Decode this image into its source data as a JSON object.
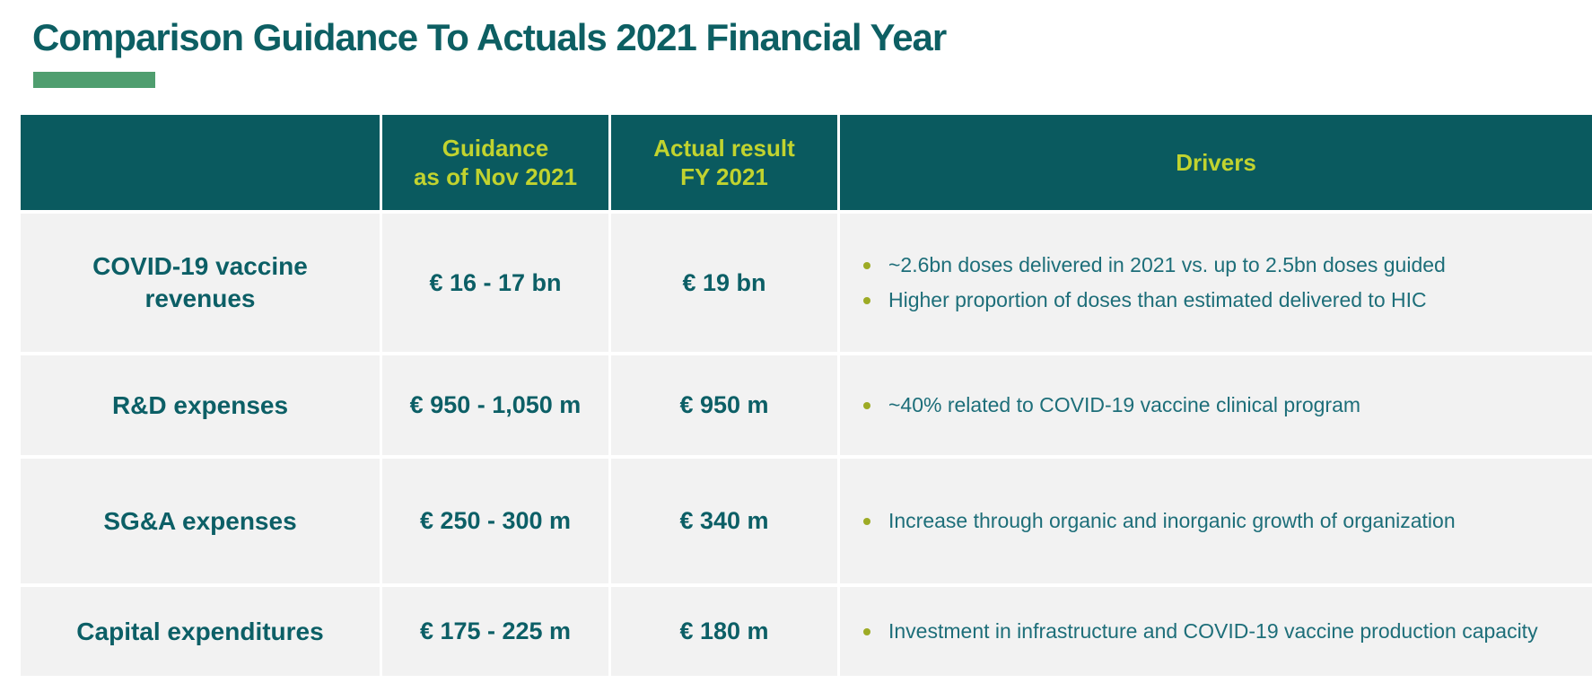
{
  "slide": {
    "title": "Comparison Guidance To Actuals 2021 Financial Year"
  },
  "colors": {
    "title_text": "#0d5f63",
    "accent_bar": "#4f9e6f",
    "header_bg": "#0a5a5f",
    "header_text": "#c1d32f",
    "row_bg": "#f2f2f2",
    "cell_text": "#0c5f66",
    "driver_text": "#1d6e79",
    "bullet": "#9dab25",
    "page_bg": "#ffffff"
  },
  "table": {
    "header": {
      "metric": "",
      "guidance_line1": "Guidance",
      "guidance_line2": "as of Nov 2021",
      "actual_line1": "Actual result",
      "actual_line2": "FY 2021",
      "drivers": "Drivers"
    },
    "rows": [
      {
        "label": "COVID-19 vaccine revenues",
        "guidance": "€ 16 - 17 bn",
        "actual": "€ 19 bn",
        "drivers": [
          "~2.6bn doses delivered in 2021 vs. up to 2.5bn doses guided",
          "Higher proportion of doses than estimated delivered to HIC"
        ]
      },
      {
        "label": "R&D expenses",
        "guidance": "€ 950 - 1,050 m",
        "actual": "€ 950 m",
        "drivers": [
          "~40% related to COVID-19 vaccine clinical program"
        ]
      },
      {
        "label": "SG&A expenses",
        "guidance": "€ 250 - 300 m",
        "actual": "€ 340 m",
        "drivers": [
          "Increase through organic and inorganic growth of organization"
        ]
      },
      {
        "label": "Capital expenditures",
        "guidance": "€ 175 - 225 m",
        "actual": "€ 180 m",
        "drivers": [
          "Investment in infrastructure and COVID-19 vaccine production capacity"
        ]
      }
    ]
  }
}
